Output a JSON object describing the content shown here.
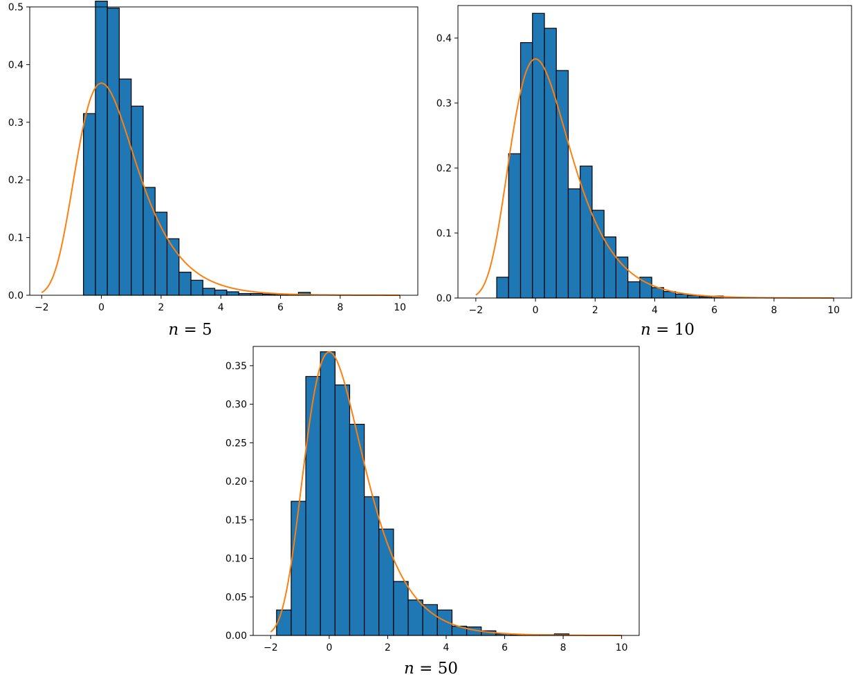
{
  "chart_data": [
    {
      "type": "bar",
      "caption_var": "n",
      "caption_rest": " = 5",
      "xlim": [
        -2.4,
        10.6
      ],
      "ylim": [
        0,
        0.5
      ],
      "xticks": [
        -2,
        0,
        2,
        4,
        6,
        8,
        10
      ],
      "yticks": [
        0.0,
        0.1,
        0.2,
        0.3,
        0.4,
        0.5
      ],
      "ytick_labels": [
        "0.0",
        "0.1",
        "0.2",
        "0.3",
        "0.4",
        "0.5"
      ],
      "bar_color": "#1f77b4",
      "curve_color": "#ff7f0e",
      "bin_edges": [
        -0.6,
        -0.2,
        0.2,
        0.6,
        1.0,
        1.4,
        1.8,
        2.2,
        2.6,
        3.0,
        3.4,
        3.8,
        4.2,
        4.6,
        5.0,
        5.4,
        5.8,
        6.2,
        6.6,
        7.0,
        7.4
      ],
      "values": [
        0.315,
        0.51,
        0.498,
        0.375,
        0.328,
        0.187,
        0.144,
        0.098,
        0.04,
        0.026,
        0.012,
        0.009,
        0.006,
        0.003,
        0.003,
        0.002,
        0.002,
        0.001,
        0.005,
        0.0
      ]
    },
    {
      "type": "bar",
      "caption_var": "n",
      "caption_rest": " = 10",
      "xlim": [
        -2.6,
        10.6
      ],
      "ylim": [
        0,
        0.45
      ],
      "xticks": [
        -2,
        0,
        2,
        4,
        6,
        8,
        10
      ],
      "yticks": [
        0.0,
        0.1,
        0.2,
        0.3,
        0.4
      ],
      "ytick_labels": [
        "0.0",
        "0.1",
        "0.2",
        "0.3",
        "0.4"
      ],
      "bar_color": "#1f77b4",
      "curve_color": "#ff7f0e",
      "bin_edges": [
        -1.3,
        -0.9,
        -0.5,
        -0.1,
        0.3,
        0.7,
        1.1,
        1.5,
        1.9,
        2.3,
        2.7,
        3.1,
        3.5,
        3.9,
        4.3,
        4.7,
        5.1,
        5.5,
        5.9,
        6.3
      ],
      "values": [
        0.032,
        0.222,
        0.393,
        0.438,
        0.415,
        0.35,
        0.168,
        0.203,
        0.135,
        0.094,
        0.063,
        0.025,
        0.032,
        0.016,
        0.01,
        0.006,
        0.004,
        0.002,
        0.003
      ]
    },
    {
      "type": "bar",
      "caption_var": "n",
      "caption_rest": " = 50",
      "xlim": [
        -2.6,
        10.6
      ],
      "ylim": [
        0,
        0.375
      ],
      "xticks": [
        -2,
        0,
        2,
        4,
        6,
        8,
        10
      ],
      "yticks": [
        0.0,
        0.05,
        0.1,
        0.15,
        0.2,
        0.25,
        0.3,
        0.35
      ],
      "ytick_labels": [
        "0.00",
        "0.05",
        "0.10",
        "0.15",
        "0.20",
        "0.25",
        "0.30",
        "0.35"
      ],
      "bar_color": "#1f77b4",
      "curve_color": "#ff7f0e",
      "bin_edges": [
        -1.8,
        -1.3,
        -0.8,
        -0.3,
        0.2,
        0.7,
        1.2,
        1.7,
        2.2,
        2.7,
        3.2,
        3.7,
        4.2,
        4.7,
        5.2,
        5.7,
        6.2,
        6.7,
        7.2,
        7.7,
        8.2
      ],
      "values": [
        0.033,
        0.174,
        0.336,
        0.368,
        0.325,
        0.274,
        0.18,
        0.138,
        0.07,
        0.046,
        0.04,
        0.033,
        0.012,
        0.011,
        0.006,
        0.002,
        0.001,
        0.001,
        0.001,
        0.002
      ]
    }
  ]
}
